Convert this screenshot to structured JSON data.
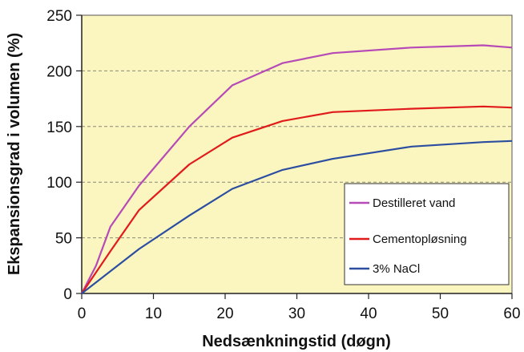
{
  "chart_data": {
    "type": "line",
    "xlabel": "Nedsænkningstid (døgn)",
    "ylabel": "Ekspansionsgrad i volumen (%)",
    "xlim": [
      0,
      60
    ],
    "ylim": [
      0,
      250
    ],
    "x_ticks": [
      "0",
      "10",
      "20",
      "30",
      "40",
      "50",
      "60"
    ],
    "y_ticks": [
      "0",
      "50",
      "100",
      "150",
      "200",
      "250"
    ],
    "grid": "horizontal dashed",
    "legend_position": "bottom-right",
    "background": "#fbf5c0",
    "series": [
      {
        "name": "Destilleret vand",
        "color": "#b64ab6",
        "points": [
          [
            0,
            0
          ],
          [
            2,
            25
          ],
          [
            4,
            60
          ],
          [
            8,
            97
          ],
          [
            15,
            150
          ],
          [
            21,
            187
          ],
          [
            28,
            207
          ],
          [
            35,
            216
          ],
          [
            46,
            221
          ],
          [
            56,
            223
          ],
          [
            60,
            221
          ]
        ]
      },
      {
        "name": "Cementopløsning",
        "color": "#e11b1b",
        "points": [
          [
            0,
            0
          ],
          [
            4,
            38
          ],
          [
            8,
            75
          ],
          [
            15,
            116
          ],
          [
            21,
            140
          ],
          [
            28,
            155
          ],
          [
            35,
            163
          ],
          [
            46,
            166
          ],
          [
            56,
            168
          ],
          [
            60,
            167
          ]
        ]
      },
      {
        "name": "3% NaCl",
        "color": "#2c4ea0",
        "points": [
          [
            0,
            0
          ],
          [
            8,
            40
          ],
          [
            15,
            70
          ],
          [
            21,
            94
          ],
          [
            28,
            111
          ],
          [
            35,
            121
          ],
          [
            46,
            132
          ],
          [
            56,
            136
          ],
          [
            60,
            137
          ]
        ]
      }
    ]
  }
}
